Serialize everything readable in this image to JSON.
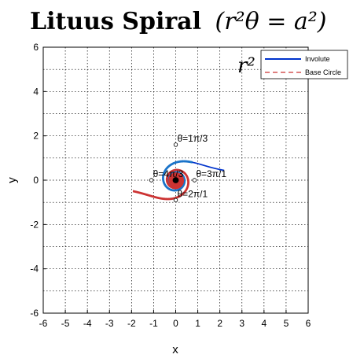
{
  "chart_data": {
    "type": "line",
    "title": {
      "name": "Lituus Spiral",
      "formula": "(r²θ = a²)"
    },
    "overlay_formula": "r²",
    "xlabel": "x",
    "ylabel": "y",
    "xlim": [
      -6,
      6
    ],
    "ylim": [
      -6,
      6
    ],
    "xticks": [
      "-6",
      "-5",
      "-4",
      "-3",
      "-2",
      "-1",
      "0",
      "1",
      "2",
      "3",
      "4",
      "5",
      "6"
    ],
    "yticks": [
      "6",
      "4",
      "2",
      "0",
      "-2",
      "-4",
      "-6"
    ],
    "grid": true,
    "legend_position": "top-right",
    "legend": [
      {
        "label": "Involute",
        "color": "#0033cc",
        "dash": "solid"
      },
      {
        "label": "Base Circle",
        "color": "#cc3333",
        "dash": "dashed"
      }
    ],
    "series": [
      {
        "curve": "lituus",
        "branch": "positive",
        "theta_range": [
          0.2,
          60
        ],
        "color": "#0033cc",
        "width": 1.7
      },
      {
        "curve": "lituus",
        "branch": "positive",
        "theta_range": [
          0.82,
          60
        ],
        "color": "#1a73c9",
        "width": 2.8
      },
      {
        "curve": "lituus",
        "branch": "negative",
        "theta_range": [
          0.25,
          60
        ],
        "color": "#cc3333",
        "width": 2.8
      }
    ],
    "a": 1,
    "annotations": [
      {
        "text": "θ=1π/3",
        "x": 0.0,
        "y": 1.6
      },
      {
        "text": "θ=3π/1",
        "x": 0.85,
        "y": 0.0
      },
      {
        "text": "θ=2π/1",
        "x": 0.0,
        "y": -0.9
      },
      {
        "text": "θ=4π/3",
        "x": -1.1,
        "y": 0.0
      }
    ],
    "markers": [
      {
        "x": 0.0,
        "y": 1.6
      },
      {
        "x": 0.85,
        "y": 0.0
      },
      {
        "x": 0.0,
        "y": -0.9
      },
      {
        "x": -1.1,
        "y": 0.0
      },
      {
        "x": 0.0,
        "y": 0.0
      }
    ]
  }
}
